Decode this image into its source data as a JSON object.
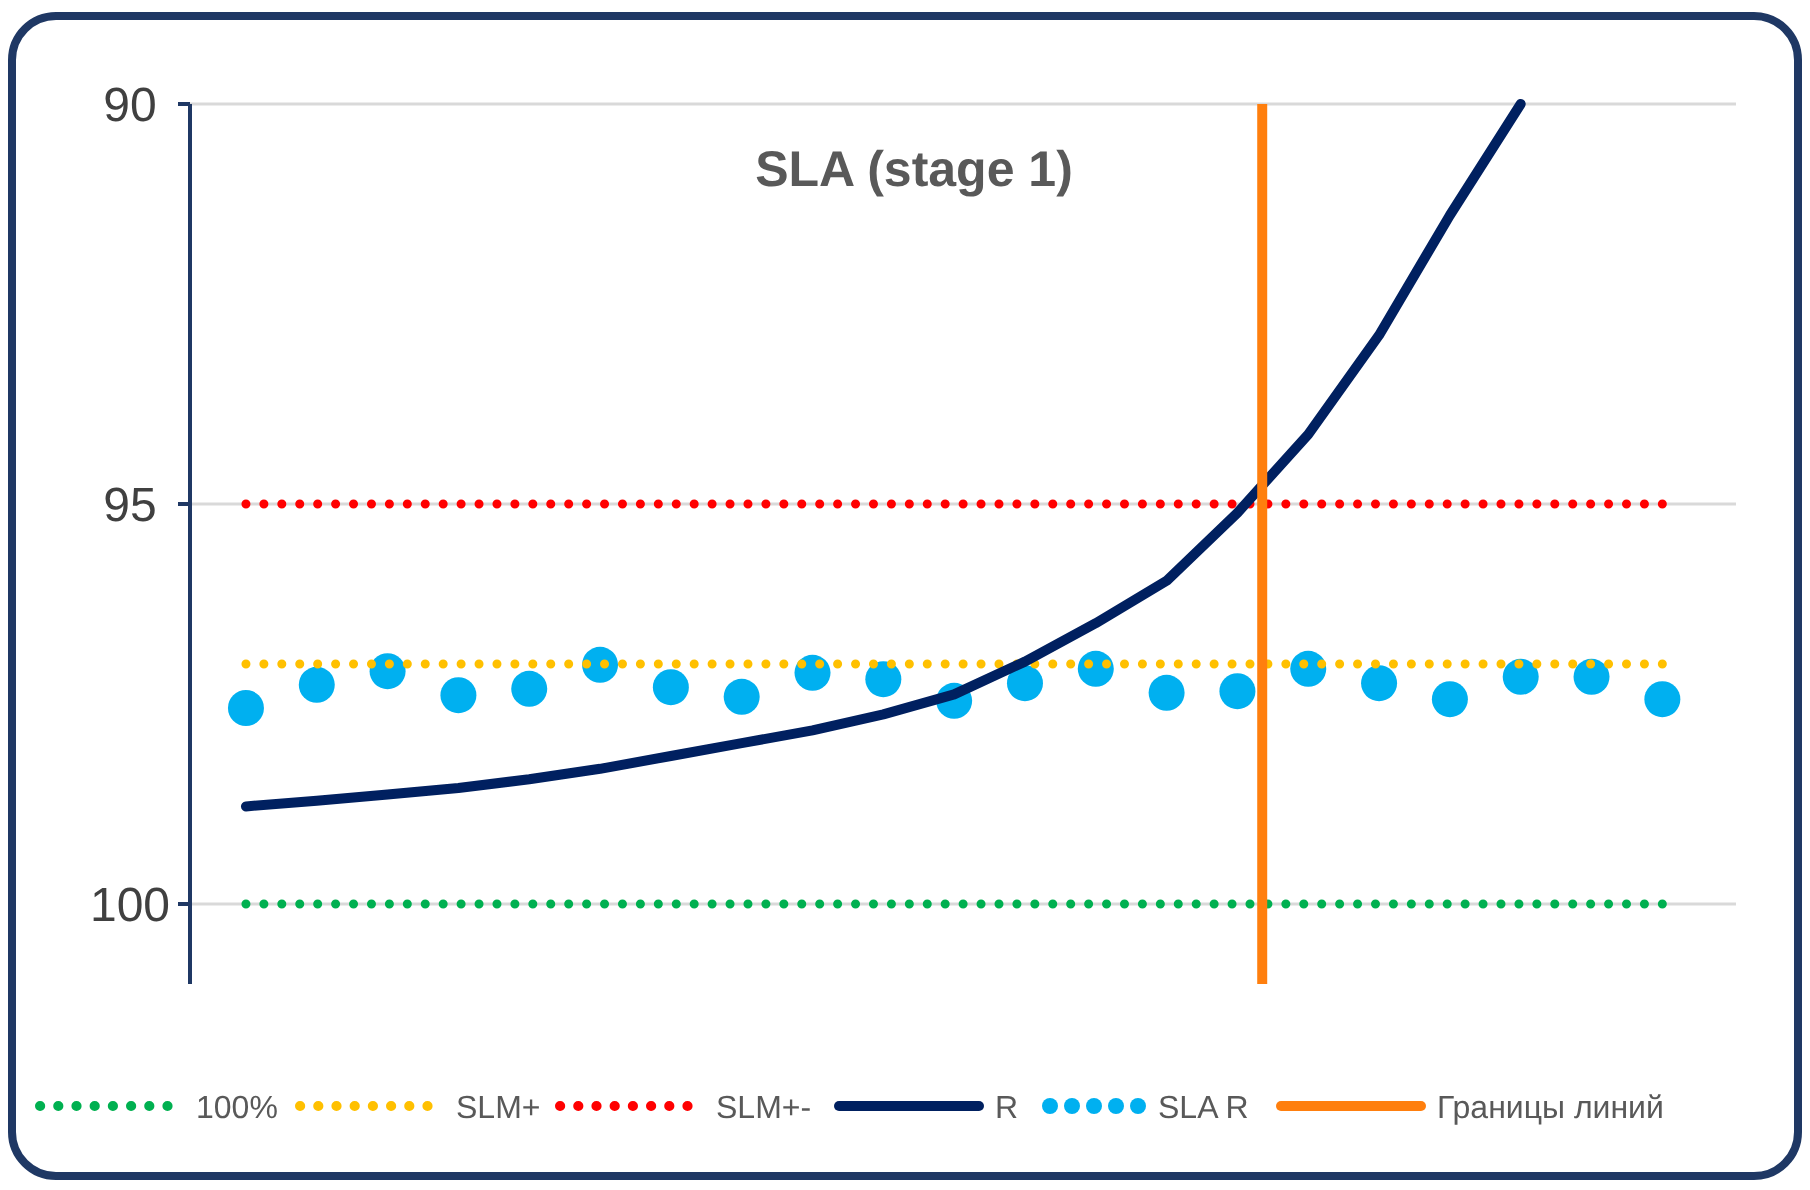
{
  "chart_data": {
    "type": "line",
    "title": "SLA (stage 1)",
    "categories": [
      null,
      null,
      null,
      null,
      null,
      null,
      null,
      null,
      null,
      null,
      null,
      null,
      null,
      null,
      null,
      null,
      null,
      null,
      null,
      null,
      null
    ],
    "ylim": [
      101,
      90
    ],
    "yticks": [
      90,
      95,
      100
    ],
    "tick_labels": "y",
    "grid": "y",
    "legend": "bottom",
    "ref_lines": [
      {
        "axis": "x",
        "label": "Границы линий",
        "color": "#ff7f0e",
        "line_style": "solid"
      }
    ],
    "series": [
      {
        "name": "100%",
        "color": "#00b050",
        "line_style": "dotted",
        "values": [
          100,
          100,
          100,
          100,
          100,
          100,
          100,
          100,
          100,
          100,
          100,
          100,
          100,
          100,
          100,
          100,
          100,
          100,
          100,
          100,
          100
        ]
      },
      {
        "name": "SLM+",
        "color": "#ffc000",
        "line_style": "dotted",
        "values": [
          97,
          97,
          97,
          97,
          97,
          97,
          97,
          97,
          97,
          97,
          97,
          97,
          97,
          97,
          97,
          97,
          97,
          97,
          97,
          97,
          97
        ]
      },
      {
        "name": "SLM+-",
        "color": "#ff0000",
        "line_style": "dotted",
        "values": [
          95,
          95,
          95,
          95,
          95,
          95,
          95,
          95,
          95,
          95,
          95,
          95,
          95,
          95,
          95,
          95,
          95,
          95,
          95,
          95,
          95
        ]
      },
      {
        "name": "R",
        "color": "#002060",
        "line_style": "solid",
        "values": [
          98.78,
          98.71,
          98.63,
          98.55,
          98.44,
          98.31,
          98.15,
          97.99,
          97.83,
          97.63,
          97.38,
          96.97,
          96.49,
          95.96,
          95.11,
          94.13,
          92.89,
          91.39,
          90,
          null,
          null
        ]
      },
      {
        "name": "SLA R",
        "type": "scatter",
        "marker": "circle",
        "color": "#00b0f0",
        "values": [
          97.55,
          97.26,
          97.09,
          97.39,
          97.31,
          97.01,
          97.29,
          97.41,
          97.11,
          97.19,
          97.46,
          97.24,
          97.06,
          97.36,
          97.34,
          97.06,
          97.24,
          97.44,
          97.16,
          97.16,
          97.44
        ]
      }
    ]
  }
}
